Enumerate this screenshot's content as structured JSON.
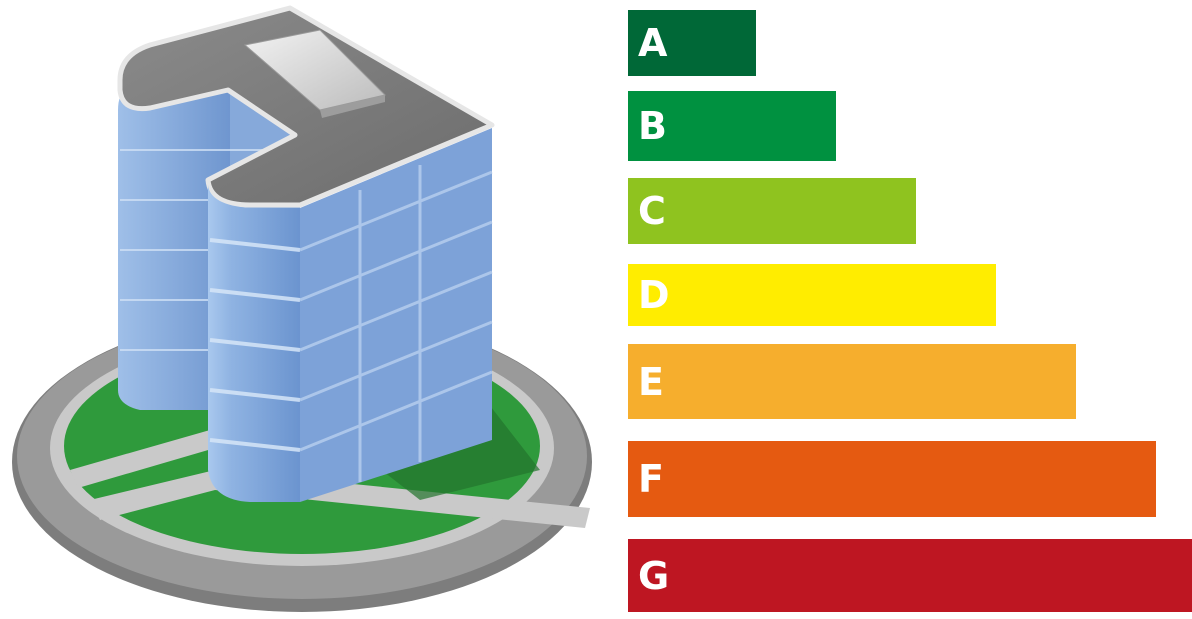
{
  "illustration": {
    "icon": "office-building-icon",
    "colors": {
      "ground_ring": "#8a8a8a",
      "ground_path": "#cfcfcf",
      "lawn": "#2f9a3c",
      "glass": "#7fa6d9",
      "roof": "#7a7a7a"
    }
  },
  "chart_data": {
    "type": "bar",
    "orientation": "horizontal",
    "categories": [
      "A",
      "B",
      "C",
      "D",
      "E",
      "F",
      "G"
    ],
    "values": [
      1,
      2,
      3,
      4,
      5,
      6,
      7
    ],
    "colors": [
      "#006837",
      "#009140",
      "#8fc31f",
      "#ffed00",
      "#f6ae2d",
      "#e55a11",
      "#be1622"
    ],
    "title": "",
    "xlabel": "",
    "ylabel": "",
    "grid": false,
    "legend": "none"
  }
}
